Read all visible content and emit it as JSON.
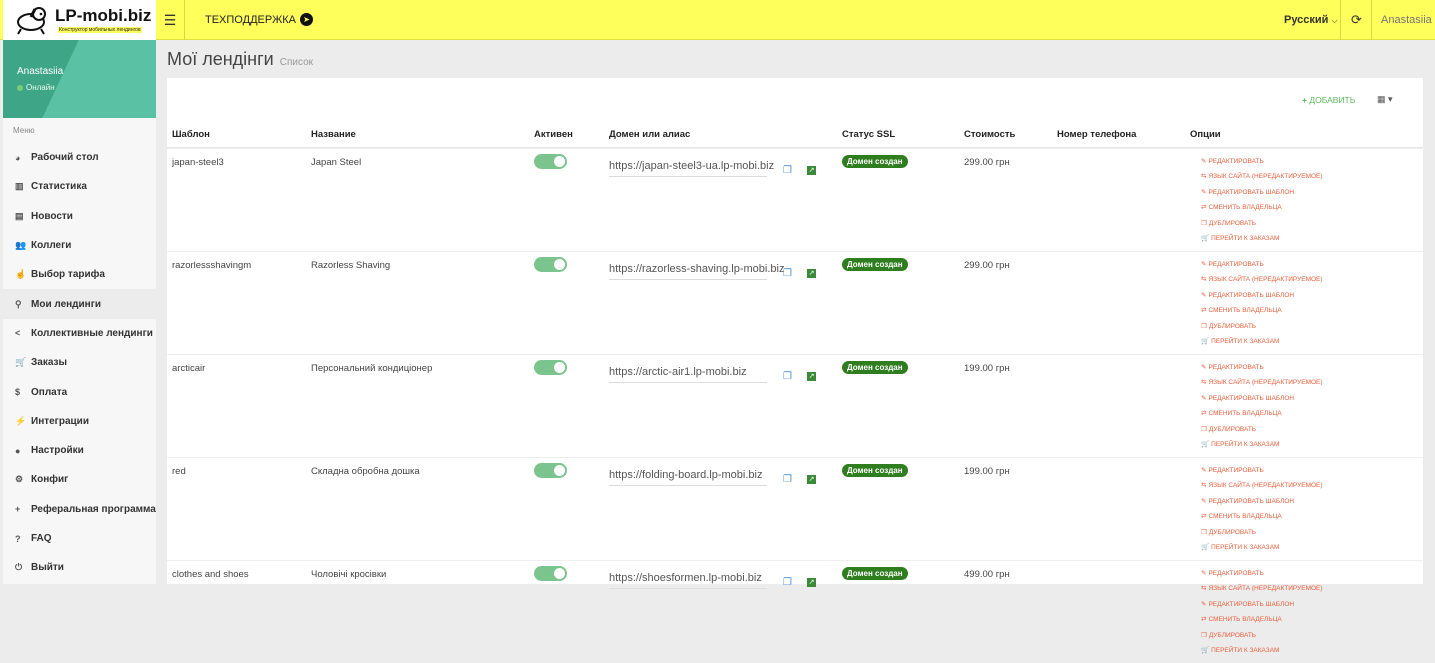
{
  "header": {
    "logo_name": "LP-mobi.biz",
    "logo_tagline": "Конструктор мобильных лендингов",
    "support": "ТЕХПОДДЕРЖКА",
    "language": "Русский",
    "user": "Anastasiia"
  },
  "sidebar": {
    "user_name": "Anastasiia",
    "status": "Онлайн",
    "menu_heading": "Меню",
    "items": [
      {
        "label": "Рабочий стол",
        "icon": "dashboard-icon",
        "glyph": "◕"
      },
      {
        "label": "Статистика",
        "icon": "bar-chart-icon",
        "glyph": "▥"
      },
      {
        "label": "Новости",
        "icon": "newspaper-icon",
        "glyph": "▤"
      },
      {
        "label": "Коллеги",
        "icon": "users-icon",
        "glyph": "👥"
      },
      {
        "label": "Выбор тарифа",
        "icon": "hand-pointer-icon",
        "glyph": "☝"
      },
      {
        "label": "Мои лендинги",
        "icon": "rocket-icon",
        "glyph": "⚲",
        "active": true
      },
      {
        "label": "Коллективные лендинги",
        "icon": "share-icon",
        "glyph": "<"
      },
      {
        "label": "Заказы",
        "icon": "cart-icon",
        "glyph": "🛒"
      },
      {
        "label": "Оплата",
        "icon": "dollar-icon",
        "glyph": "$"
      },
      {
        "label": "Интеграции",
        "icon": "plug-icon",
        "glyph": "⚡"
      },
      {
        "label": "Настройки",
        "icon": "user-icon",
        "glyph": "●"
      },
      {
        "label": "Конфиг",
        "icon": "cogs-icon",
        "glyph": "⚙"
      },
      {
        "label": "Реферальная программа",
        "icon": "user-plus-icon",
        "glyph": "+"
      },
      {
        "label": "FAQ",
        "icon": "question-icon",
        "glyph": "?"
      },
      {
        "label": "Выйти",
        "icon": "power-icon",
        "glyph": "⏻"
      }
    ]
  },
  "page": {
    "title": "Мої лендінги",
    "subtitle": "Список",
    "add_label": "ДОБАВИТЬ"
  },
  "table": {
    "headers": [
      "Шаблон",
      "Название",
      "Активен",
      "Домен или алиас",
      "Статус SSL",
      "Стоимость",
      "Номер телефона",
      "Опции"
    ],
    "options": [
      "РЕДАКТИРОВАТЬ",
      "ЯЗЫК САЙТА (НЕРЕДАКТИРУЕМОЕ)",
      "РЕДАКТИРОВАТЬ ШАБЛОН",
      "СМЕНИТЬ ВЛАДЕЛЬЦА",
      "ДУБЛИРОВАТЬ",
      "ПЕРЕЙТИ К ЗАКАЗАМ"
    ],
    "rows": [
      {
        "template": "japan-steel3",
        "name": "Japan Steel",
        "active": true,
        "domain": "https://japan-steel3-ua.lp-mobi.biz",
        "ssl": "Домен создан",
        "cost": "299.00 грн",
        "phone": ""
      },
      {
        "template": "razorlessshavingm",
        "name": "Razorless Shaving",
        "active": true,
        "domain": "https://razorless-shaving.lp-mobi.biz",
        "ssl": "Домен создан",
        "cost": "299.00 грн",
        "phone": ""
      },
      {
        "template": "arcticair",
        "name": "Персональний кондиціонер",
        "active": true,
        "domain": "https://arctic-air1.lp-mobi.biz",
        "ssl": "Домен создан",
        "cost": "199.00 грн",
        "phone": ""
      },
      {
        "template": "red",
        "name": "Складна обробна дошка",
        "active": true,
        "domain": "https://folding-board.lp-mobi.biz",
        "ssl": "Домен создан",
        "cost": "199.00 грн",
        "phone": ""
      },
      {
        "template": "clothes and shoes",
        "name": "Чоловічі кросівки",
        "active": true,
        "domain": "https://shoesformen.lp-mobi.biz",
        "ssl": "Домен создан",
        "cost": "499.00 грн",
        "phone": ""
      }
    ]
  },
  "colors": {
    "header": "#ffff5c",
    "accent_green": "#2e7d1f",
    "option_link": "#e8603c",
    "toggle_on": "#7cc48d"
  }
}
